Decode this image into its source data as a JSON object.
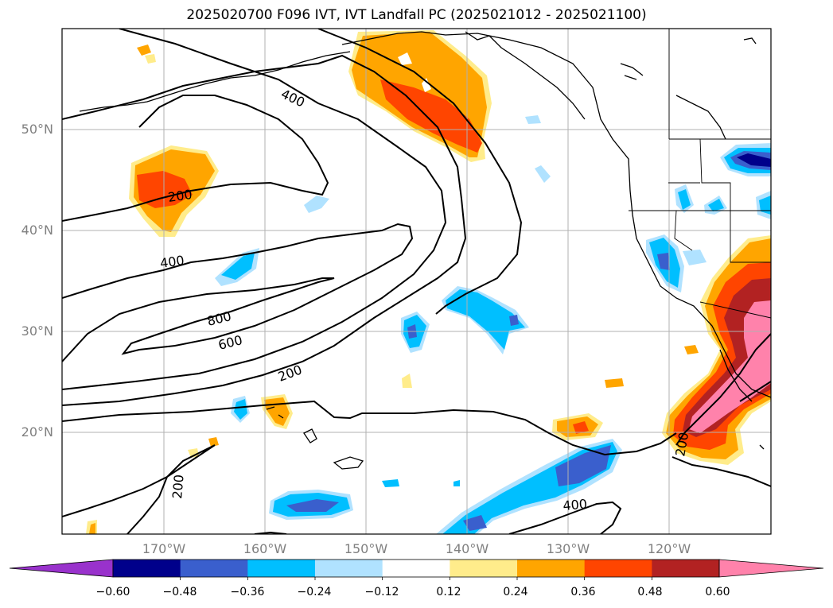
{
  "title": "2025020700 F096 IVT, IVT Landfall PC (2025021012 - 2025021100)",
  "lat_labels": [
    "50°N",
    "40°N",
    "30°N",
    "20°N"
  ],
  "lon_labels": [
    "170°W",
    "160°W",
    "150°W",
    "140°W",
    "130°W",
    "120°W"
  ],
  "colorbar": {
    "ticks": [
      "−0.60",
      "−0.48",
      "−0.36",
      "−0.24",
      "−0.12",
      "0.12",
      "0.24",
      "0.36",
      "0.48",
      "0.60"
    ],
    "colors": [
      "#9932cc",
      "#00008b",
      "#3a5fcd",
      "#00bfff",
      "#b0e2ff",
      "#ffffff",
      "#ffec8b",
      "#ffa500",
      "#ff4500",
      "#b22222",
      "#ff82ab"
    ]
  },
  "contour_labels": [
    "400",
    "200",
    "400",
    "800",
    "600",
    "200",
    "200",
    "200",
    "400"
  ],
  "map_extent": {
    "lon": [
      -180,
      -110
    ],
    "lat": [
      10,
      60
    ]
  }
}
